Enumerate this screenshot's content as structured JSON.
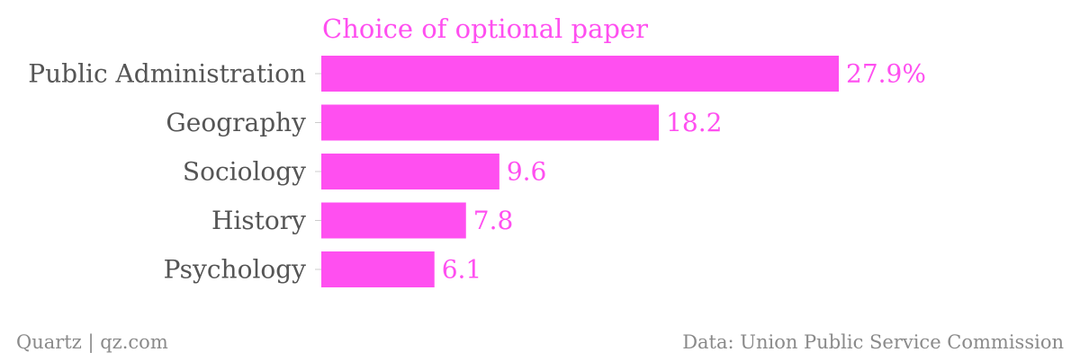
{
  "chart_data": {
    "type": "bar",
    "orientation": "horizontal",
    "title": "Choice of optional paper",
    "categories": [
      "Public Administration",
      "Geography",
      "Sociology",
      "History",
      "Psychology"
    ],
    "values": [
      27.9,
      18.2,
      9.6,
      7.8,
      6.1
    ],
    "value_labels": [
      "27.9%",
      "18.2",
      "9.6",
      "7.8",
      "6.1"
    ],
    "unit": "%",
    "xlim": [
      0,
      27.9
    ],
    "xlabel": "",
    "ylabel": "",
    "grid": false,
    "legend": "none",
    "bar_color": "#ff4ff0",
    "title_color": "#ff4ff0",
    "value_label_color": "#ff4ff0",
    "category_label_color": "#555555"
  },
  "footer": {
    "source_left": "Quartz | qz.com",
    "source_right": "Data: Union Public Service Commission"
  }
}
